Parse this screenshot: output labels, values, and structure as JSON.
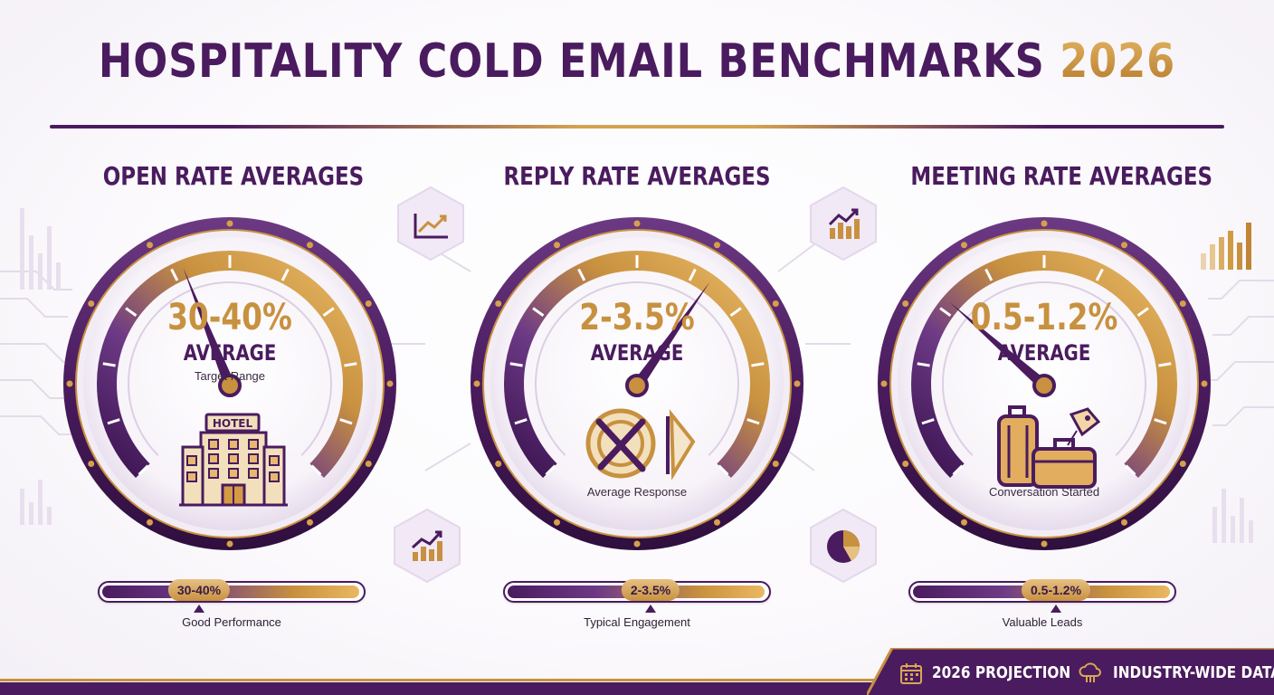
{
  "title": {
    "main": "HOSPITALITY COLD EMAIL BENCHMARKS",
    "year": "2026"
  },
  "colors": {
    "purple": "#4a1b5e",
    "gold": "#c8913f",
    "light_gold": "#eab862"
  },
  "gauges": [
    {
      "heading": "OPEN RATE AVERAGES",
      "value": "30-40%",
      "average_label": "AVERAGE",
      "sub_label": "Target Range",
      "caption": "",
      "illustration": "hotel-icon",
      "hotel_sign": "HOTEL",
      "needle_level": 0.42,
      "bar": {
        "pill": "30-40%",
        "label": "Good Performance",
        "level": 0.38
      }
    },
    {
      "heading": "REPLY RATE AVERAGES",
      "value": "2-3.5%",
      "average_label": "AVERAGE",
      "sub_label": "",
      "caption": "Average Response",
      "illustration": "plate-fork-knife-icon",
      "needle_level": 0.63,
      "bar": {
        "pill": "2-3.5%",
        "label": "Typical Engagement",
        "level": 0.55
      }
    },
    {
      "heading": "MEETING RATE AVERAGES",
      "value": "0.5-1.2%",
      "average_label": "AVERAGE",
      "sub_label": "",
      "caption": "Conversation Started",
      "illustration": "luggage-icon",
      "needle_level": 0.32,
      "bar": {
        "pill": "0.5-1.2%",
        "label": "Valuable Leads",
        "level": 0.55
      }
    }
  ],
  "badges": [
    "line-chart-icon",
    "bar-chart-icon",
    "bar-trend-icon",
    "pie-chart-icon"
  ],
  "footer": [
    {
      "icon": "calendar-icon",
      "label": "2026 PROJECTION"
    },
    {
      "icon": "cloud-data-icon",
      "label": "INDUSTRY-WIDE DATA"
    }
  ]
}
